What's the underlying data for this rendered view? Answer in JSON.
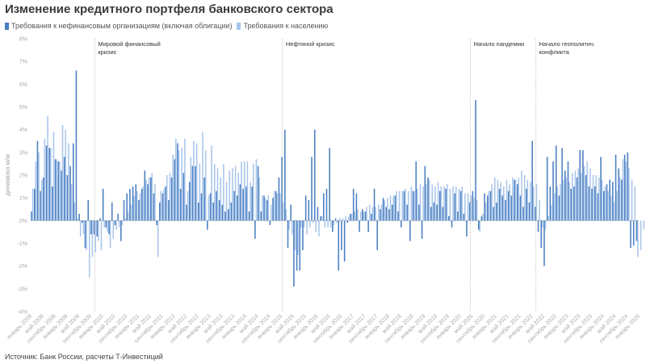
{
  "title": "Изменение кредитного портфеля банковского сектора",
  "source": "Источник: Банк России, расчеты Т-Инвестиций",
  "colors": {
    "corporate": "#4a7fc1",
    "retail": "#a9c6ea",
    "zero": "#999999",
    "event": "#bbbbbb"
  },
  "chart_data": {
    "type": "bar",
    "ylabel": "динамика м/м",
    "ylim": [
      -4,
      8
    ],
    "y_ticks": [
      "-4%",
      "-3%",
      "-2%",
      "-1%",
      "0%",
      "1%",
      "2%",
      "3%",
      "4%",
      "5%",
      "6%",
      "7%",
      "8%"
    ],
    "x_tick_labels": [
      "январь 2008",
      "май 2008",
      "сентябрь 2008",
      "январь 2009",
      "май 2009",
      "сентябрь 2009",
      "январь 2010",
      "май 2010",
      "сентябрь 2010",
      "январь 2011",
      "май 2011",
      "сентябрь 2011",
      "январь 2012",
      "май 2012",
      "сентябрь 2012",
      "январь 2013",
      "май 2013",
      "сентябрь 2013",
      "январь 2014",
      "май 2014",
      "сентябрь 2014",
      "январь 2015",
      "май 2015",
      "сентябрь 2015",
      "январь 2016",
      "май 2016",
      "сентябрь 2016",
      "январь 2017",
      "май 2017",
      "сентябрь 2017",
      "январь 2018",
      "май 2018",
      "сентябрь 2018",
      "январь 2019",
      "май 2019",
      "сентябрь 2019",
      "январь 2020",
      "май 2020",
      "сентябрь 2020",
      "январь 2021",
      "май 2021",
      "сентябрь 2021",
      "январь 2022",
      "май 2022",
      "сентябрь 2022",
      "январь 2023",
      "май 2023",
      "сентябрь 2023",
      "январь 2024",
      "май 2024",
      "сентябрь 2024",
      "январь 2025"
    ],
    "events": [
      {
        "month_index": 21,
        "lines": [
          "Мировой финансовый",
          "кризис"
        ]
      },
      {
        "month_index": 84,
        "lines": [
          "Нефтяной кризис"
        ]
      },
      {
        "month_index": 147,
        "lines": [
          "Начало пандемии"
        ]
      },
      {
        "month_index": 169,
        "lines": [
          "Начало геополитич.",
          "конфликта"
        ]
      }
    ],
    "series": [
      {
        "name": "Требования к нефинансовым организациям (включая облигации)",
        "values": [
          0.4,
          1.4,
          3.5,
          1.3,
          1.9,
          3.3,
          3.2,
          1.5,
          2.7,
          2.6,
          2.2,
          2.8,
          2.0,
          2.4,
          3.4,
          6.6,
          0.3,
          -0.1,
          -1.2,
          0.9,
          -0.6,
          -0.6,
          -0.7,
          0.1,
          1.4,
          -0.3,
          -0.6,
          0.8,
          -0.2,
          0.3,
          -0.9,
          0.9,
          1.2,
          1.4,
          1.5,
          1.6,
          0.9,
          1.4,
          2.2,
          1.6,
          1.9,
          1.2,
          -0.2,
          0.8,
          1.2,
          1.5,
          0.9,
          1.9,
          2.7,
          3.4,
          1.4,
          2.1,
          0.7,
          1.7,
          2.4,
          2.4,
          0.8,
          1.2,
          1.9,
          -0.4,
          1.2,
          0.8,
          1.3,
          0.9,
          0.7,
          0.4,
          0.5,
          0.8,
          1.3,
          1.1,
          1.6,
          1.4,
          1.5,
          0.4,
          1.5,
          -0.8,
          2.4,
          0.4,
          1.1,
          0.9,
          -0.2,
          1.0,
          1.3,
          1.9,
          2.8,
          4.0,
          -1.2,
          0.7,
          -2.9,
          -2.2,
          -2.2,
          -1.3,
          1.1,
          0.9,
          2.8,
          4.0,
          0.6,
          0.2,
          1.2,
          1.4,
          3.2,
          -0.5,
          0.1,
          -2.2,
          -1.3,
          -1.8,
          -0.1,
          0.3,
          1.4,
          1.2,
          -0.5,
          0.5,
          0.4,
          -0.5,
          0.3,
          1.4,
          -1.3,
          0.5,
          1.0,
          0.6,
          0.5,
          0.7,
          1.1,
          0.4,
          -0.3,
          1.3,
          0.7,
          -0.9,
          1.3,
          2.6,
          0.7,
          -0.8,
          2.4,
          1.9,
          0.6,
          0.8,
          0.7,
          1.3,
          0.6,
          1.4,
          0.2,
          -0.3,
          1.2,
          0.4,
          1.3,
          0.3,
          -0.7,
          0.8,
          1.3,
          5.3,
          -0.4,
          0.2,
          1.2,
          1.1,
          1.3,
          0.6,
          0.8,
          1.4,
          1.1,
          0.9,
          1.3,
          1.1,
          1.8,
          1.6,
          1.1,
          0.6,
          1.4,
          0.8,
          3.5,
          0.6,
          -0.5,
          -1.2,
          -2.0,
          2.8,
          1.5,
          2.6,
          3.3,
          1.1,
          3.2,
          2.2,
          2.6,
          1.4,
          1.5,
          1.9,
          3.1,
          3.1,
          2.0,
          1.5,
          1.4,
          1.5,
          1.2,
          2.8,
          1.3,
          1.6,
          1.8,
          1.7,
          2.9,
          2.3,
          1.8,
          2.9,
          3.0,
          -1.2,
          -1.1,
          -0.9
        ]
      },
      {
        "name": "Требования к населению",
        "values": [
          1.4,
          2.6,
          3.0,
          1.8,
          3.6,
          4.6,
          3.2,
          3.9,
          2.7,
          2.6,
          4.2,
          4.0,
          3.4,
          1.6,
          0.8,
          0.1,
          -0.7,
          -0.6,
          -1.3,
          -2.5,
          -1.6,
          -1.4,
          -0.9,
          -1.3,
          -0.3,
          -0.5,
          -1.2,
          -0.8,
          -0.4,
          -0.3,
          -0.2,
          0.1,
          0.4,
          0.7,
          1.1,
          1.3,
          1.2,
          1.5,
          1.8,
          1.9,
          2.1,
          1.6,
          -1.6,
          1.3,
          1.4,
          2.0,
          2.1,
          2.9,
          3.6,
          3.1,
          3.2,
          3.6,
          1.3,
          2.8,
          3.5,
          3.4,
          2.5,
          3.9,
          3.1,
          1.1,
          3.3,
          2.5,
          2.3,
          1.9,
          2.5,
          1.7,
          2.2,
          2.3,
          2.4,
          2.1,
          2.6,
          2.6,
          2.6,
          1.7,
          2.5,
          2.7,
          1.9,
          1.1,
          1.0,
          1.1,
          0.7,
          1.3,
          1.2,
          1.2,
          0.8,
          0.5,
          -0.4,
          -0.6,
          -1.3,
          -1.5,
          -0.3,
          -0.3,
          -0.6,
          -0.3,
          -0.1,
          -0.5,
          -0.7,
          0.2,
          -0.3,
          -0.3,
          -0.3,
          -0.2,
          -0.1,
          0.1,
          0.1,
          0.2,
          0.2,
          0.3,
          0.4,
          0.5,
          0.4,
          0.4,
          0.6,
          0.7,
          0.6,
          0.6,
          0.7,
          0.7,
          0.9,
          1.0,
          1.1,
          1.1,
          1.3,
          1.3,
          1.3,
          1.4,
          1.3,
          1.5,
          1.3,
          1.4,
          1.6,
          1.5,
          1.6,
          1.8,
          1.6,
          1.5,
          1.7,
          1.5,
          1.5,
          1.6,
          1.4,
          1.5,
          1.5,
          1.4,
          1.5,
          1.2,
          1.2,
          1.1,
          1.0,
          0.9,
          -0.5,
          0.3,
          0.8,
          1.3,
          1.6,
          1.9,
          1.8,
          1.7,
          1.5,
          1.8,
          1.6,
          1.9,
          1.8,
          1.9,
          2.2,
          2.0,
          1.8,
          1.7,
          1.5,
          1.6,
          0.9,
          -0.3,
          -0.4,
          0.2,
          0.7,
          1.2,
          1.5,
          1.6,
          1.8,
          1.9,
          1.7,
          2.1,
          2.2,
          2.3,
          2.1,
          2.4,
          2.6,
          2.3,
          2.0,
          2.0,
          1.9,
          1.8,
          1.5,
          1.3,
          1.1,
          0.8,
          1.3,
          1.9,
          2.7,
          2.6,
          2.3,
          1.8,
          1.5,
          -1.6,
          -1.3,
          -0.4
        ]
      }
    ]
  }
}
